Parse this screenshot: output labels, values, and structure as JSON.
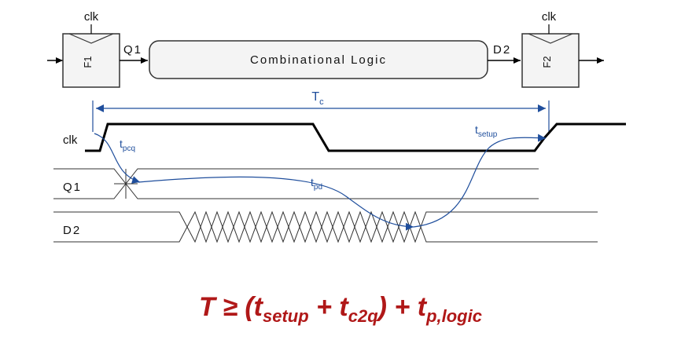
{
  "circuit": {
    "clk_label_left": "clk",
    "clk_label_right": "clk",
    "flop1": "F1",
    "flop2": "F2",
    "q1": "Q1",
    "d2": "D2",
    "logic": "Combinational Logic"
  },
  "timing": {
    "tc": "T",
    "tc_sub": "c",
    "clk": "clk",
    "q1": "Q1",
    "d2": "D2",
    "tpcq": "t",
    "tpcq_sub": "pcq",
    "tpd": "t",
    "tpd_sub": "pd",
    "tsetup": "t",
    "tsetup_sub": "setup"
  },
  "formula": {
    "lhs": "T ≥ (t",
    "sub1": "setup",
    "mid1": " + t",
    "sub2": "c2q",
    "mid2": ") + t",
    "sub3": "p,logic"
  },
  "colors": {
    "wire": "#000000",
    "annotation": "#1f4e9c",
    "formula": "#b01818"
  }
}
